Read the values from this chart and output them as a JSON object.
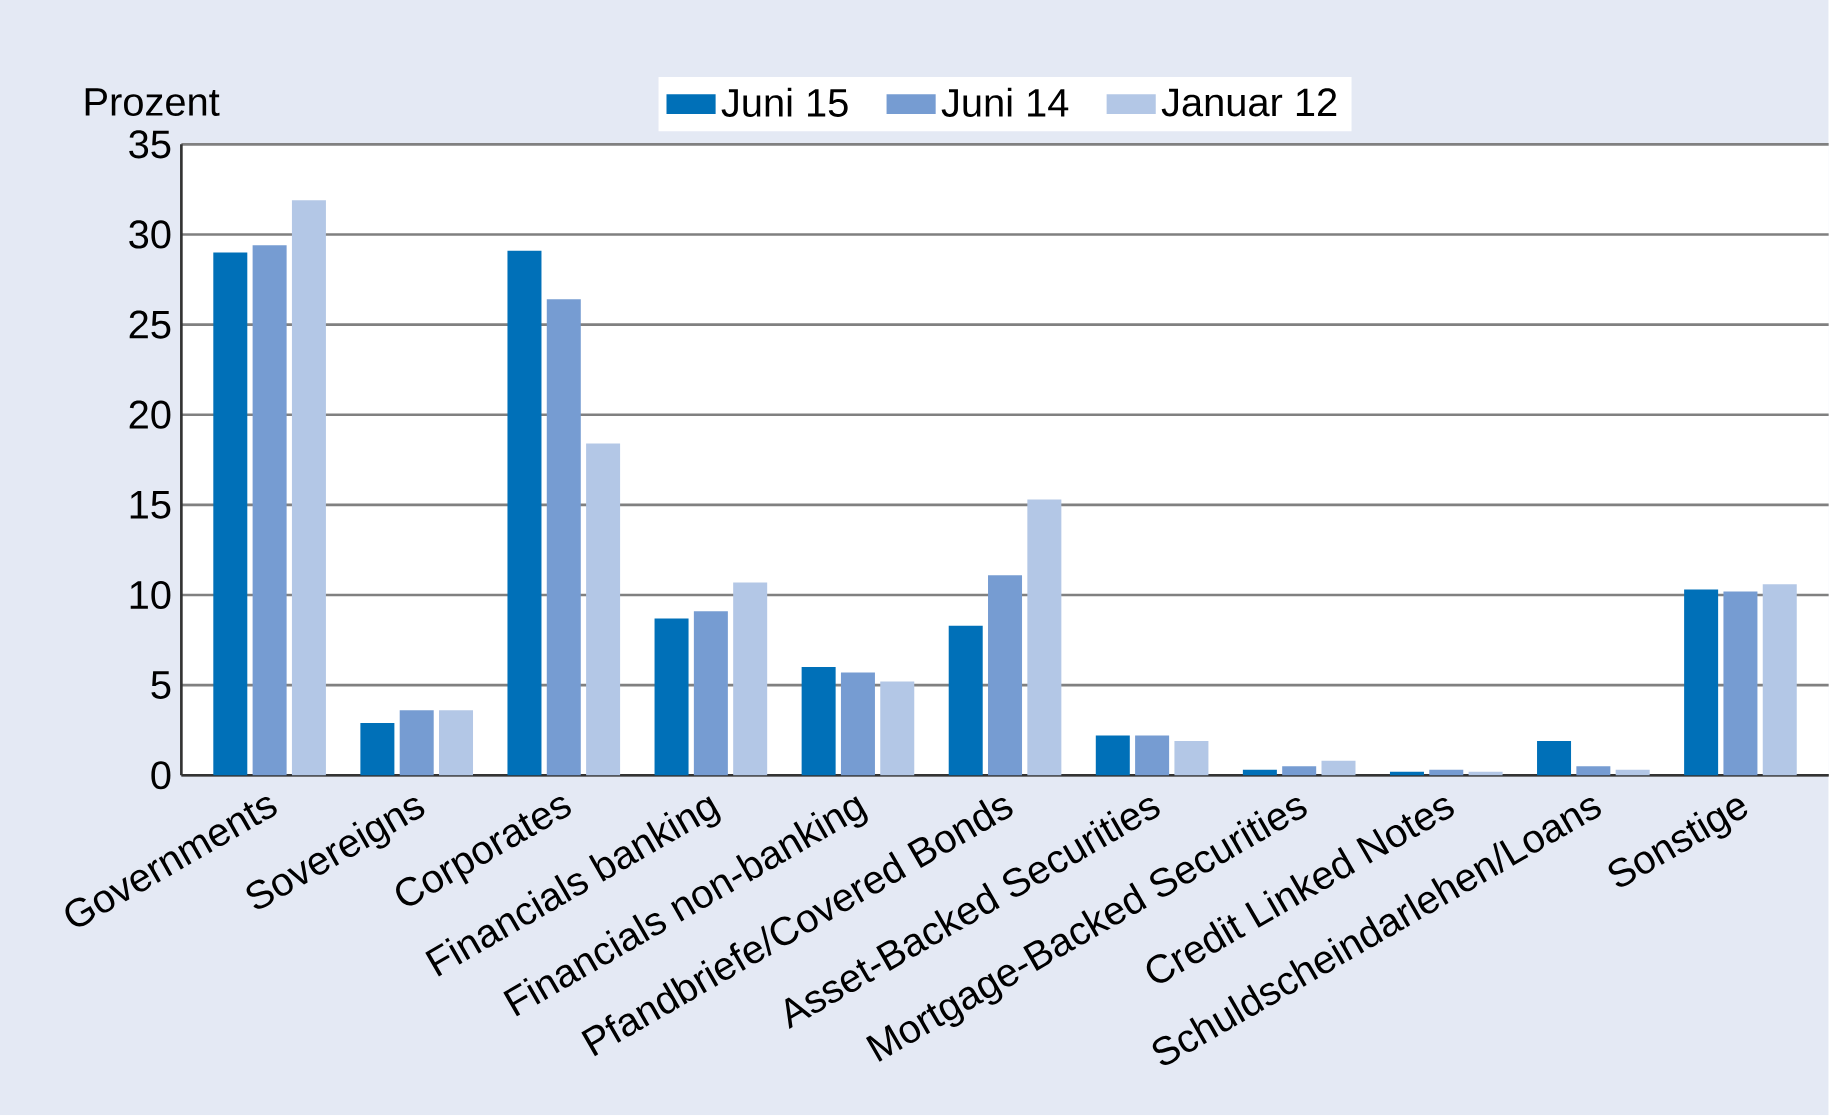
{
  "chart_data": {
    "type": "bar",
    "ylabel": "Prozent",
    "categories": [
      "Governments",
      "Sovereigns",
      "Corporates",
      "Financials banking",
      "Financials non-banking",
      "Pfandbriefe/Covered Bonds",
      "Asset-Backed Securities",
      "Mortgage-Backed Securities",
      "Credit Linked Notes",
      "Schuldscheindarlehen/Loans",
      "Sonstige"
    ],
    "series": [
      {
        "name": "Juni 15",
        "color": "#0070b8",
        "values": [
          29.0,
          2.9,
          29.1,
          8.7,
          6.0,
          8.3,
          2.2,
          0.3,
          0.2,
          1.9,
          10.3
        ]
      },
      {
        "name": "Juni 14",
        "color": "#769cd2",
        "values": [
          29.4,
          3.6,
          26.4,
          9.1,
          5.7,
          11.1,
          2.2,
          0.5,
          0.3,
          0.5,
          10.2
        ]
      },
      {
        "name": "Januar 12",
        "color": "#b3c7e6",
        "values": [
          31.9,
          3.6,
          18.4,
          10.7,
          5.2,
          15.3,
          1.9,
          0.8,
          0.2,
          0.3,
          10.6
        ]
      }
    ],
    "ylim": [
      0,
      35
    ],
    "yticks": [
      0,
      5,
      10,
      15,
      20,
      25,
      30,
      35
    ],
    "grid": "y",
    "legend": "top"
  }
}
